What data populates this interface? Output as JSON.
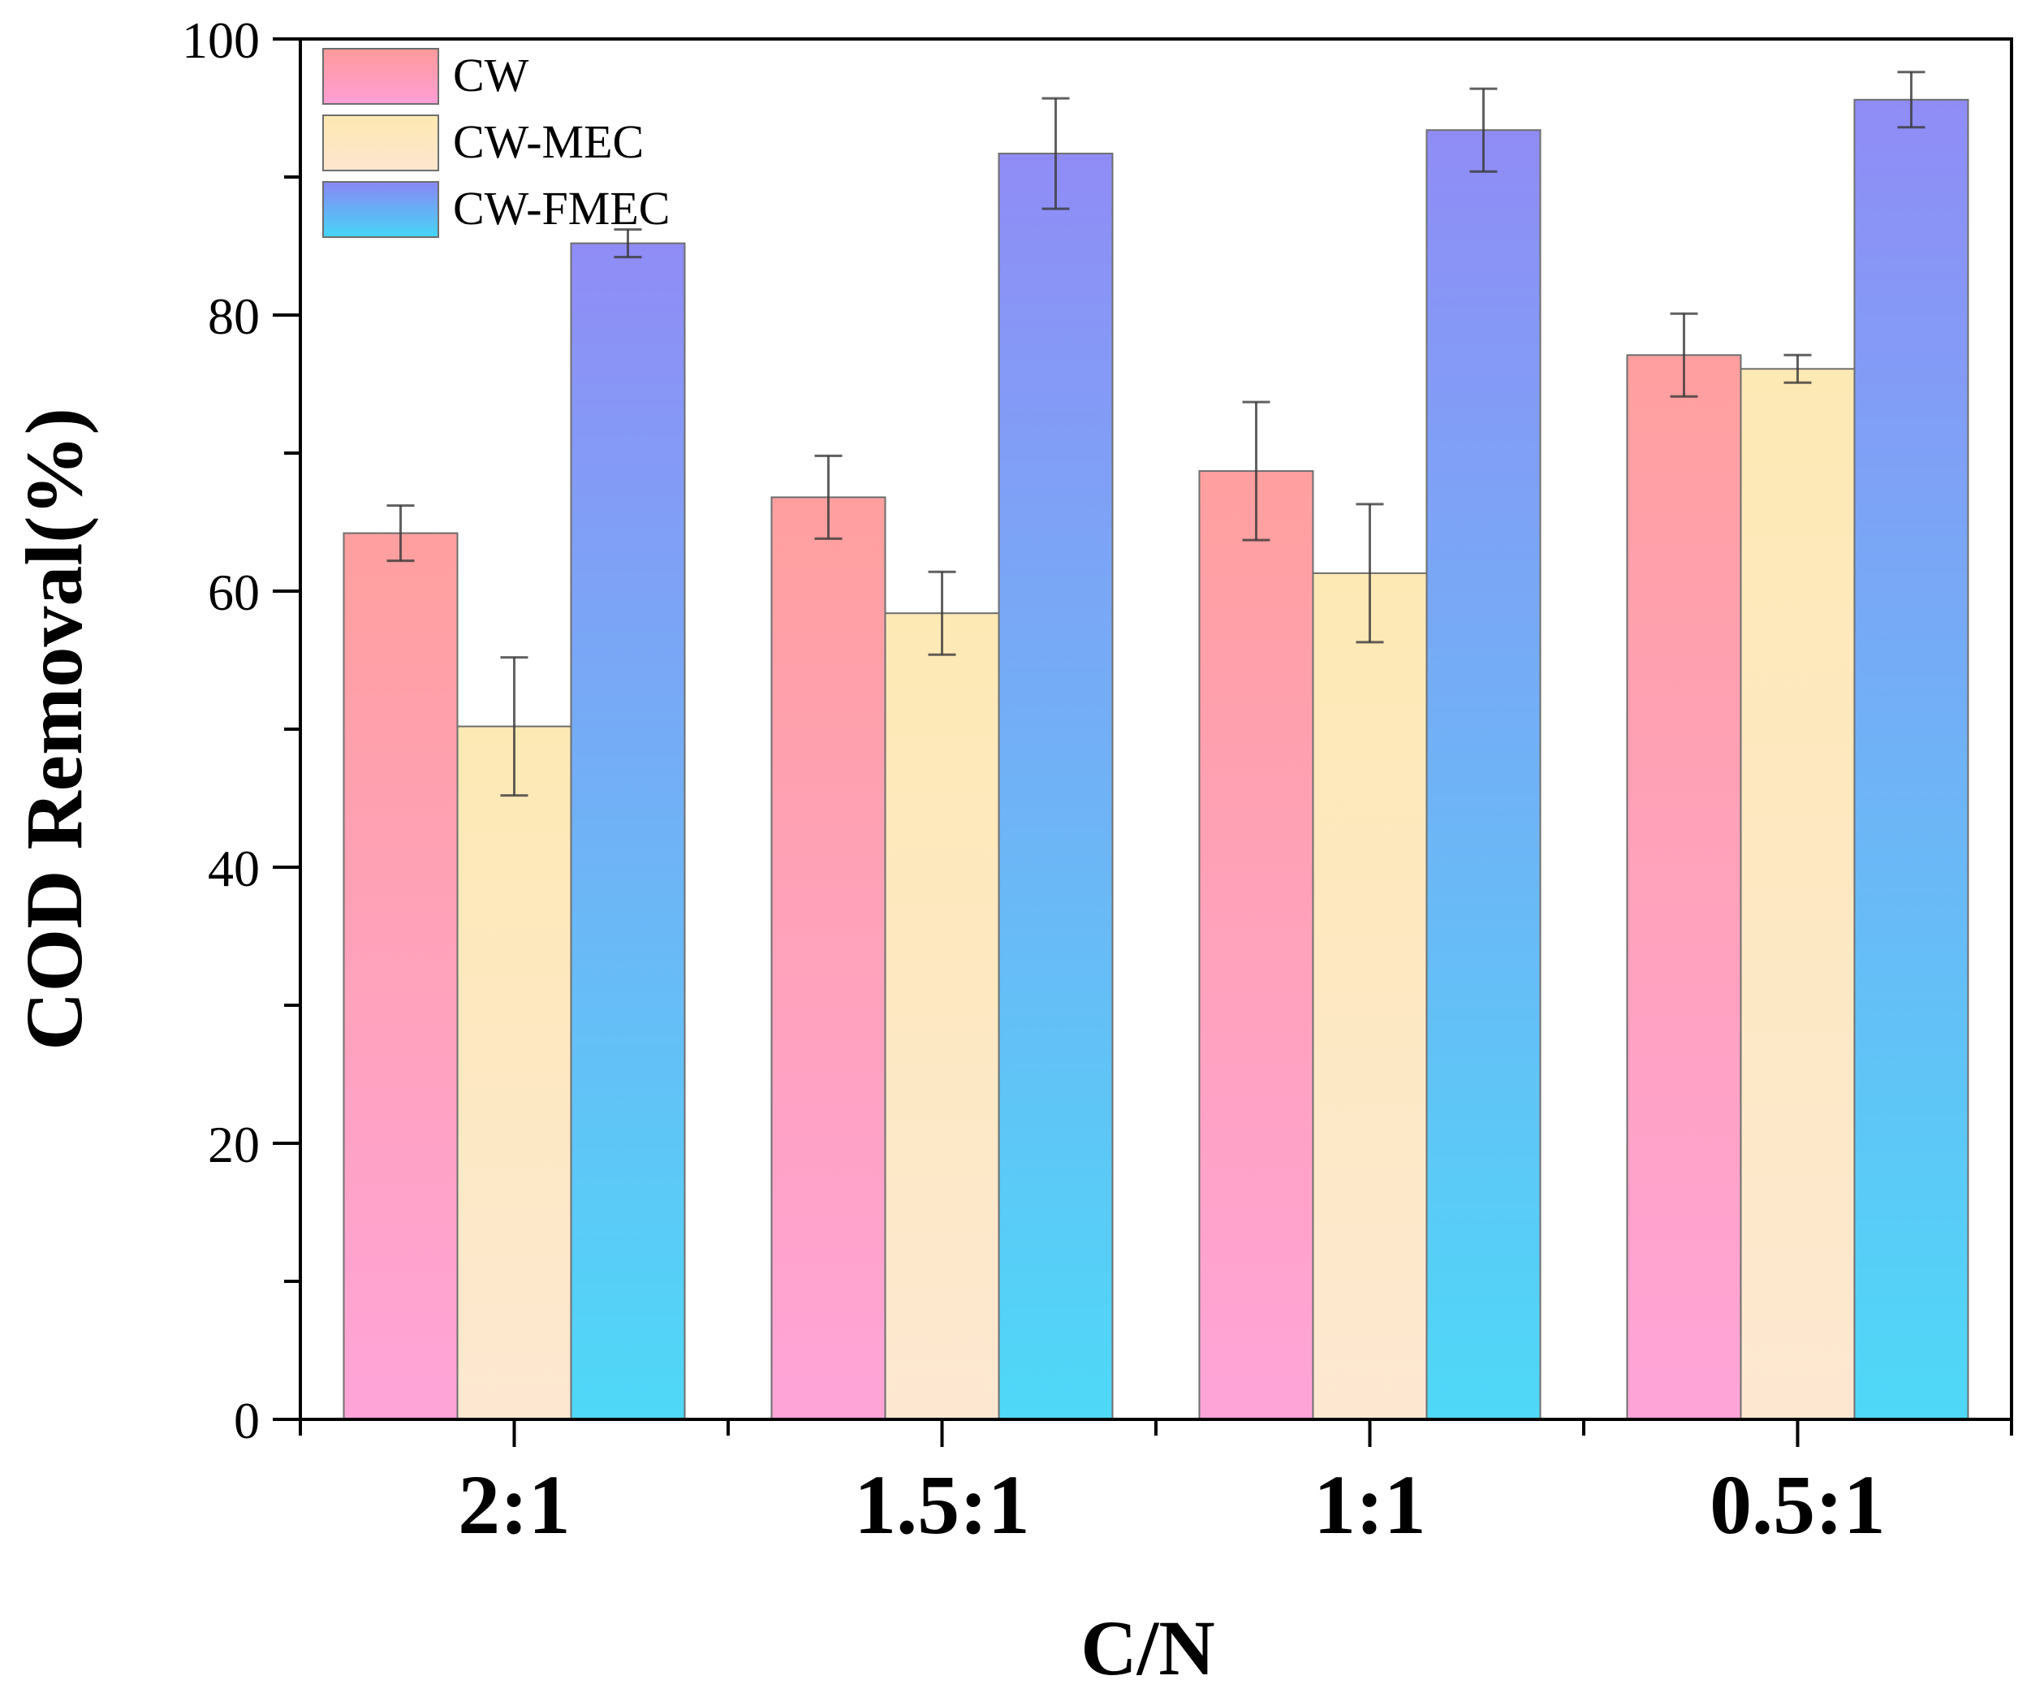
{
  "chart_data": {
    "type": "bar",
    "title": "",
    "xlabel": "C/N",
    "ylabel": "COD Removal(%)",
    "ylim": [
      0,
      100
    ],
    "yticks": [
      0,
      20,
      40,
      60,
      80,
      100
    ],
    "ytick_labels": [
      "0",
      "20",
      "40",
      "60",
      "80",
      "100"
    ],
    "categories": [
      "2:1",
      "1.5:1",
      "1:1",
      "0.5:1"
    ],
    "series": [
      {
        "name": "CW",
        "values": [
          64.2,
          66.8,
          68.7,
          77.1
        ],
        "errors": [
          2.0,
          3.0,
          5.0,
          3.0
        ],
        "gradient": [
          "#ff9a9a",
          "#ff9fd6"
        ]
      },
      {
        "name": "CW-MEC",
        "values": [
          50.2,
          58.4,
          61.3,
          76.1
        ],
        "errors": [
          5.0,
          3.0,
          5.0,
          1.0
        ],
        "gradient": [
          "#fde8b0",
          "#fde6cf"
        ]
      },
      {
        "name": "CW-FMEC",
        "values": [
          85.2,
          91.7,
          93.4,
          95.6
        ],
        "errors": [
          1.0,
          4.0,
          3.0,
          2.0
        ],
        "gradient": [
          "#8a86f5",
          "#45d6f7"
        ]
      }
    ],
    "legend": {
      "position": "top-left",
      "entries": [
        "CW",
        "CW-MEC",
        "CW-FMEC"
      ]
    },
    "grid": false
  }
}
